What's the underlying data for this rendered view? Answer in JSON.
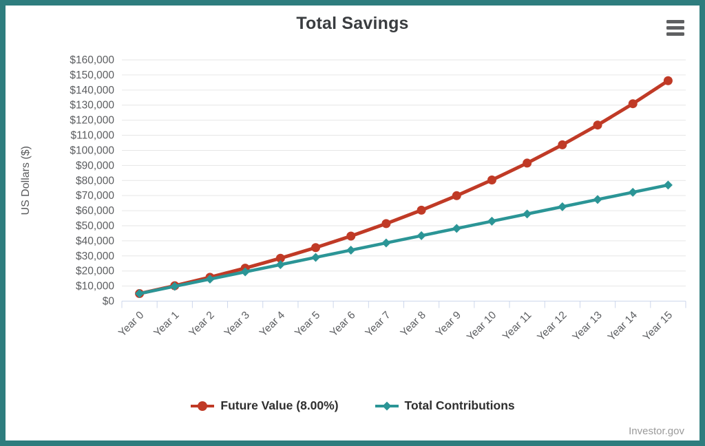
{
  "header": {
    "title": "Total Savings",
    "menu_icon": "hamburger-icon"
  },
  "chart_data": {
    "type": "line",
    "title": "Total Savings",
    "categories": [
      "Year 0",
      "Year 1",
      "Year 2",
      "Year 3",
      "Year 4",
      "Year 5",
      "Year 6",
      "Year 7",
      "Year 8",
      "Year 9",
      "Year 10",
      "Year 11",
      "Year 12",
      "Year 13",
      "Year 14",
      "Year 15"
    ],
    "series": [
      {
        "name": "Future Value (8.00%)",
        "color": "#c03a26",
        "marker": "circle",
        "line_width": 5,
        "values": [
          5000,
          10200,
          15816,
          21881,
          28432,
          35506,
          43147,
          51398,
          60311,
          69935,
          80330,
          91556,
          103681,
          116774,
          130917,
          146191
        ]
      },
      {
        "name": "Total Contributions",
        "color": "#2b9596",
        "marker": "diamond",
        "line_width": 4.5,
        "values": [
          5000,
          9800,
          14600,
          19400,
          24200,
          29000,
          33800,
          38600,
          43400,
          48200,
          53000,
          57800,
          62600,
          67400,
          72200,
          77000
        ]
      }
    ],
    "xlabel": "",
    "ylabel": "US Dollars ($)",
    "ylim": [
      0,
      160000
    ],
    "ytick_step": 10000,
    "ytick_prefix": "$",
    "grid": "horizontal",
    "legend_position": "bottom",
    "x_label_rotation": -45
  },
  "colors": {
    "page_border": "#2e7d7e",
    "grid_line": "#e6e6e6",
    "axis_line": "#ccd6eb",
    "tick_label": "#5b5d60",
    "axis_title": "#58595b",
    "chart_title": "#3a3d40",
    "legend_text": "#2f2f2f",
    "menu_icon": "#5f6062",
    "credit_text": "#9a9a9a"
  },
  "footer": {
    "credit": "Investor.gov"
  }
}
